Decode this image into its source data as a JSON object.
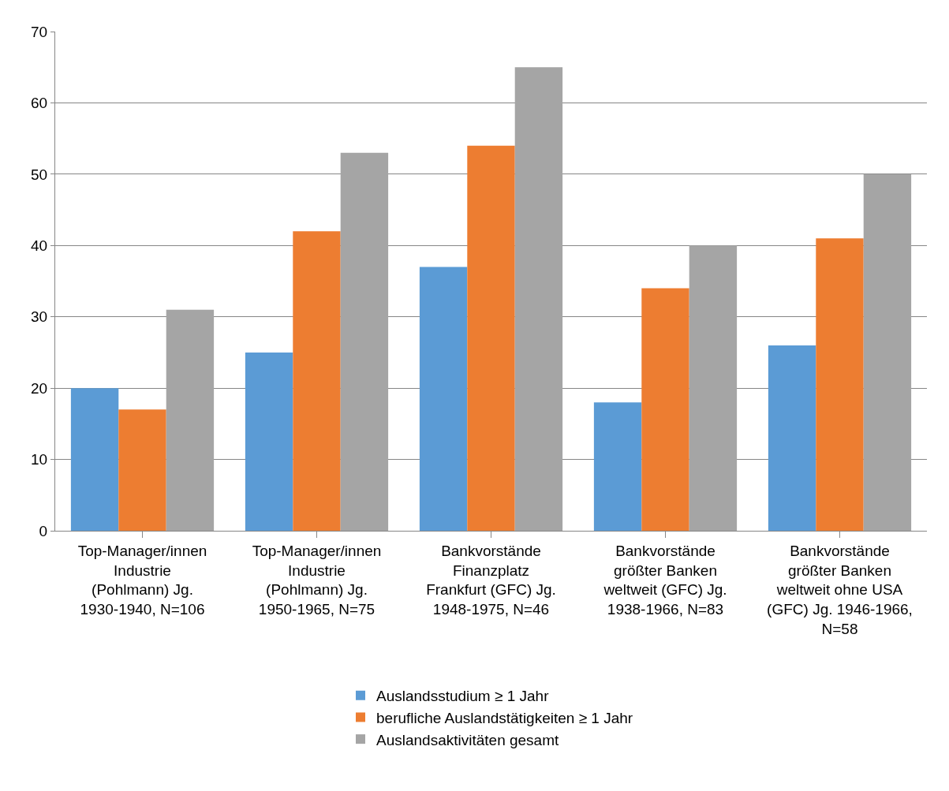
{
  "chart_data": {
    "type": "bar",
    "categories": [
      "Top-Manager/innen\nIndustrie\n(Pohlmann) Jg.\n1930-1940, N=106",
      "Top-Manager/innen\nIndustrie\n(Pohlmann) Jg.\n1950-1965, N=75",
      "Bankvorstände\nFinanzplatz\nFrankfurt (GFC) Jg.\n1948-1975, N=46",
      "Bankvorstände\ngrößter Banken\nweltweit (GFC) Jg.\n1938-1966, N=83",
      "Bankvorstände\ngrößter Banken\nweltweit ohne USA\n(GFC) Jg. 1946-1966,\nN=58"
    ],
    "series": [
      {
        "name": "Auslandsstudium ≥ 1 Jahr",
        "color": "#5b9bd5",
        "values": [
          20,
          25,
          37,
          18,
          26
        ]
      },
      {
        "name": "berufliche Auslandstätigkeiten ≥ 1 Jahr",
        "color": "#ed7d31",
        "values": [
          17,
          42,
          54,
          34,
          41
        ]
      },
      {
        "name": "Auslandsaktivitäten gesamt",
        "color": "#a5a5a5",
        "values": [
          31,
          53,
          65,
          40,
          50
        ]
      }
    ],
    "ylim": [
      0,
      70
    ],
    "yticks": [
      0,
      10,
      20,
      30,
      40,
      50,
      60,
      70
    ],
    "grid": "y",
    "legend": "bottom"
  }
}
